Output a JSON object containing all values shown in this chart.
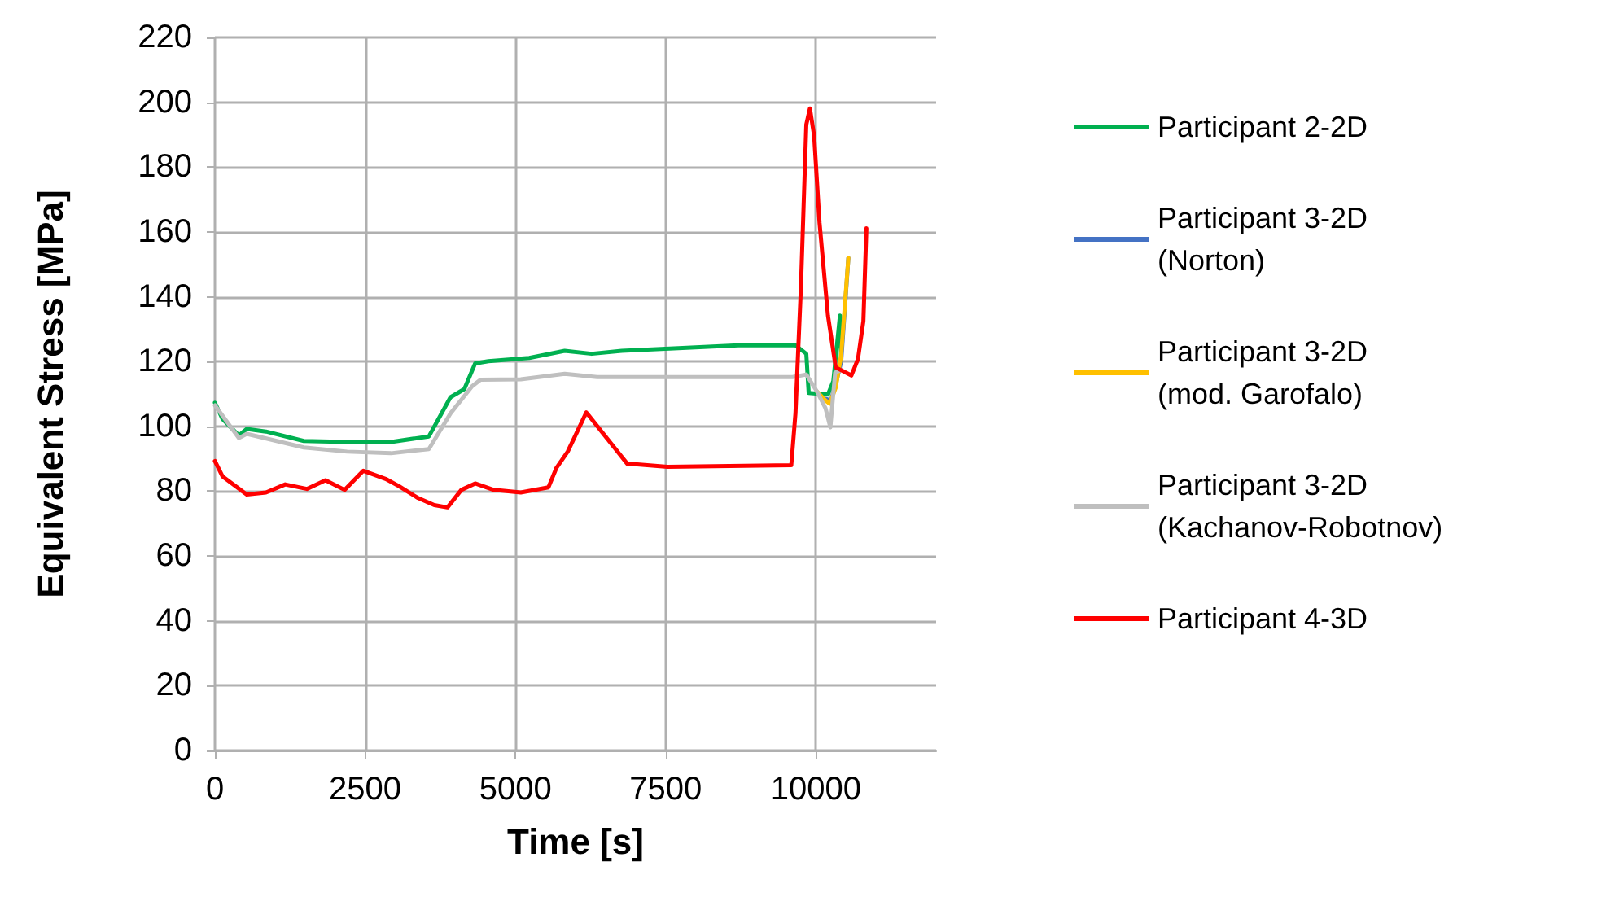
{
  "chart_data": {
    "type": "line",
    "xlabel": "Time [s]",
    "ylabel": "Equivalent Stress [MPa]",
    "xlim": [
      0,
      12000
    ],
    "xticks": [
      0,
      2500,
      5000,
      7500,
      10000
    ],
    "ylim": [
      0,
      220
    ],
    "yticks": [
      0,
      20,
      40,
      60,
      80,
      100,
      120,
      140,
      160,
      180,
      200,
      220
    ],
    "grid": true,
    "legend": "right",
    "marker": "none",
    "line_style": "solid",
    "series": [
      {
        "name": "Participant 2-2D",
        "color": "#00b050",
        "x": [
          0,
          126,
          400,
          530,
          850,
          1480,
          2200,
          2930,
          3560,
          3920,
          4150,
          4330,
          4550,
          5230,
          5820,
          6270,
          6770,
          7710,
          8710,
          9660,
          9840,
          9880,
          10200,
          10290,
          10400,
          10420
        ],
        "values": [
          107.3,
          102.3,
          97.2,
          99.2,
          98.4,
          95.5,
          95.2,
          95.2,
          96.9,
          109,
          111.5,
          119.4,
          120.1,
          121.1,
          123.3,
          122.4,
          123.3,
          124.1,
          125,
          125,
          122.4,
          110.3,
          109.8,
          114,
          134.2,
          120.8
        ]
      },
      {
        "name": "Participant 3-2D (Norton)",
        "color": "#4472c4",
        "x": [
          10160,
          10250,
          10330,
          10420,
          10540
        ],
        "values": [
          108.5,
          108,
          113,
          120,
          152
        ]
      },
      {
        "name": "Participant 3-2D (mod. Garofalo)",
        "color": "#ffc000",
        "x": [
          10020,
          10160,
          10230,
          10330,
          10420,
          10540
        ],
        "values": [
          110.7,
          108,
          107,
          112,
          122,
          152
        ]
      },
      {
        "name": "Participant 3-2D (Kachanov-Robotnov)",
        "color": "#bfbfbf",
        "x": [
          0,
          400,
          530,
          1480,
          2200,
          2930,
          3560,
          3920,
          4280,
          4420,
          5090,
          5820,
          6360,
          9610,
          9840,
          10020,
          10160,
          10240,
          10320,
          10420
        ],
        "values": [
          106.5,
          96.4,
          97.7,
          93.5,
          92.2,
          91.7,
          93,
          104,
          112.4,
          114.4,
          114.5,
          116.2,
          115.2,
          115.2,
          116,
          110.7,
          105.6,
          99.7,
          116.6,
          117.4
        ]
      },
      {
        "name": "Participant 4-3D",
        "color": "#ff0000",
        "x": [
          0,
          126,
          530,
          850,
          1170,
          1530,
          1840,
          2160,
          2470,
          2840,
          3060,
          3380,
          3650,
          3870,
          4100,
          4330,
          4640,
          5090,
          5550,
          5680,
          5870,
          6180,
          6860,
          7530,
          9590,
          9660,
          9750,
          9840,
          9900,
          9970,
          10060,
          10200,
          10330,
          10590,
          10700,
          10790,
          10840
        ],
        "values": [
          89.3,
          84.6,
          79,
          79.6,
          82.1,
          80.7,
          83.4,
          80.4,
          86.3,
          83.8,
          81.6,
          77.9,
          75.7,
          75,
          80.4,
          82.4,
          80.4,
          79.6,
          81.2,
          87.1,
          92.2,
          104.3,
          88.5,
          87.5,
          88,
          104,
          142.6,
          193.1,
          198.1,
          189.7,
          162.8,
          134.2,
          118.2,
          115.7,
          120.8,
          132.5,
          161.1
        ]
      }
    ]
  }
}
